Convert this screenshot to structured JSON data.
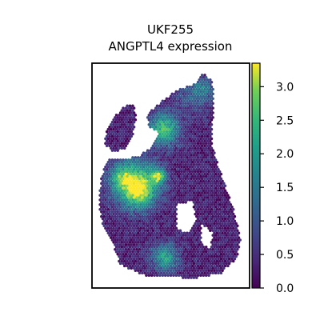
{
  "chart_data": {
    "type": "scatter",
    "title_line1": "UKF255",
    "title_line2": "ANGPTL4 expression",
    "xlabel": "",
    "ylabel": "",
    "colormap": "viridis",
    "colorbar": {
      "range": [
        0.0,
        3.35
      ],
      "ticks": [
        "0.0",
        "0.5",
        "1.0",
        "1.5",
        "2.0",
        "2.5",
        "3.0"
      ],
      "tick_values": [
        0.0,
        0.5,
        1.0,
        1.5,
        2.0,
        2.5,
        3.0
      ]
    },
    "hotspots": [
      {
        "region": "left-center cluster",
        "value": 2.5
      },
      {
        "region": "upper-middle cluster",
        "value": 2.3
      },
      {
        "region": "bottom-center cluster",
        "value": 1.8
      }
    ]
  }
}
